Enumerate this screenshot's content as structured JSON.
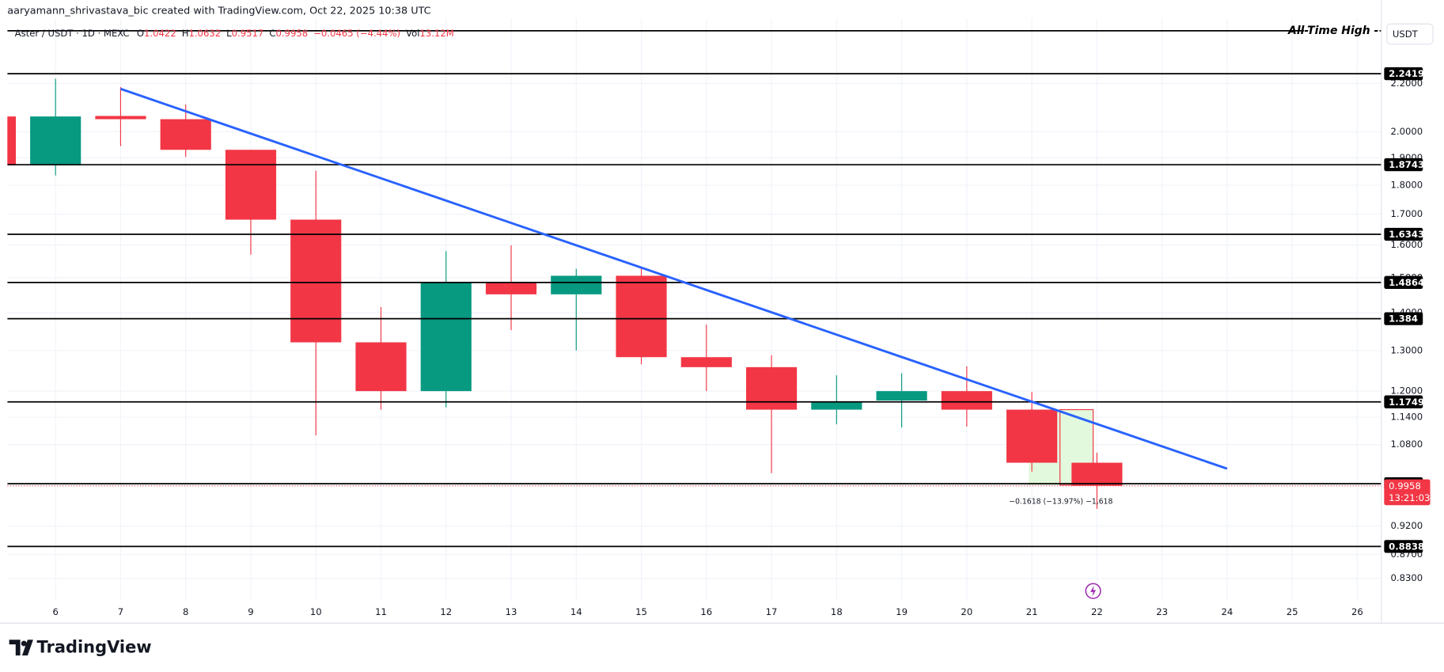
{
  "chart_data": {
    "type": "candlestick",
    "attribution": "aaryamann_shrivastava_bic created with TradingView.com, Oct 22, 2025 10:38 UTC",
    "symbol": "Aster / USDT · 1D · MEXC",
    "ohlc_labels": [
      "O",
      "H",
      "L",
      "C"
    ],
    "change": "−0.0465 (−4.44%)",
    "volume_label": "Vol",
    "volume": "13.12M",
    "currency": "USDT",
    "x": [
      5,
      6,
      7,
      8,
      9,
      10,
      11,
      12,
      13,
      14,
      15,
      16,
      17,
      18,
      19,
      20,
      21,
      22
    ],
    "open": [
      2.061,
      1.872,
      2.063,
      2.05,
      1.93,
      1.682,
      1.321,
      1.2,
      1.487,
      1.452,
      1.506,
      1.283,
      1.258,
      1.157,
      1.178,
      1.2,
      1.157,
      1.0422
    ],
    "high": [
      2.061,
      2.22,
      2.184,
      2.11,
      1.93,
      1.852,
      1.416,
      1.581,
      1.599,
      1.527,
      1.53,
      1.368,
      1.288,
      1.238,
      1.243,
      1.26,
      1.198,
      1.0632
    ],
    "low": [
      1.872,
      1.835,
      1.944,
      1.903,
      1.57,
      1.1,
      1.157,
      1.162,
      1.353,
      1.3,
      1.265,
      1.2,
      1.021,
      1.124,
      1.117,
      1.119,
      1.024,
      0.9517
    ],
    "close": [
      1.872,
      2.061,
      2.05,
      1.93,
      1.682,
      1.321,
      1.2,
      1.487,
      1.452,
      1.506,
      1.283,
      1.258,
      1.157,
      1.174,
      1.2,
      1.157,
      1.0422,
      0.9958
    ],
    "up_color": "#089981",
    "down_color": "#f23645",
    "xlim": [
      5.26,
      26.37
    ],
    "xticks": [
      6,
      7,
      8,
      9,
      10,
      11,
      12,
      13,
      14,
      15,
      16,
      17,
      18,
      19,
      20,
      21,
      22,
      23,
      24,
      25,
      26
    ],
    "ylim": [
      0.795,
      2.5
    ],
    "log_scale": true,
    "grid": true,
    "yticks": [
      {
        "value": 2.2,
        "label": "2.2000"
      },
      {
        "value": 2.0,
        "label": "2.0000"
      },
      {
        "value": 1.9,
        "label": "1.9000"
      },
      {
        "value": 1.8,
        "label": "1.8000"
      },
      {
        "value": 1.7,
        "label": "1.7000"
      },
      {
        "value": 1.6,
        "label": "1.6000"
      },
      {
        "value": 1.5,
        "label": "1.5000"
      },
      {
        "value": 1.4,
        "label": "1.4000"
      },
      {
        "value": 1.3,
        "label": "1.3000"
      },
      {
        "value": 1.2,
        "label": "1.2000"
      },
      {
        "value": 1.14,
        "label": "1.1400"
      },
      {
        "value": 1.08,
        "label": "1.0800"
      },
      {
        "value": 0.92,
        "label": "0.9200"
      },
      {
        "value": 0.87,
        "label": "0.8700"
      },
      {
        "value": 0.83,
        "label": "0.8300"
      }
    ],
    "levels": [
      2.2419,
      1.8743,
      1.6343,
      1.4864,
      1.384,
      1.1749,
      {
        "value": 1.0,
        "label": "1.0000"
      },
      0.8838
    ],
    "ath_line": {
      "value": 2.44,
      "label": "All-Time High -"
    },
    "trendline": {
      "x": [
        7,
        24
      ],
      "y": [
        2.176,
        1.03
      ],
      "color": "#2962ff"
    },
    "countdown": "13:21:03",
    "measure_label": "−0.1618 (−13.97%) −1,618",
    "logo": "TradingView"
  }
}
